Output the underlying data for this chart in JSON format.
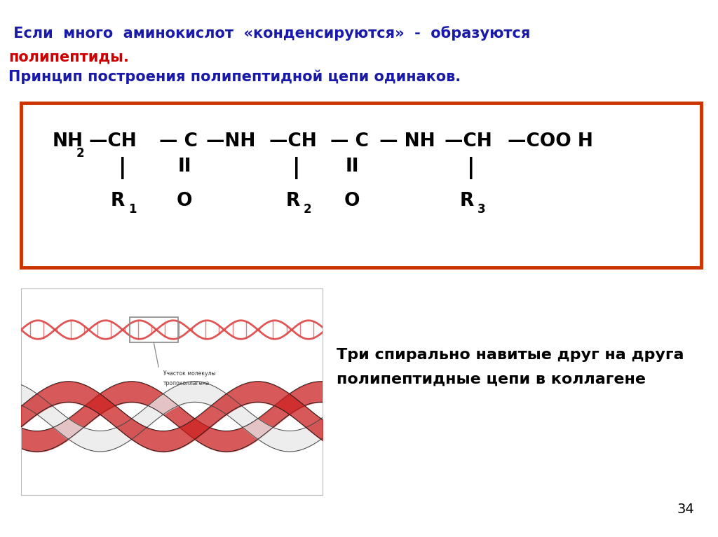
{
  "background_color": "#ffffff",
  "title_line1_part1": " Если  много  аминокислот  «конденсируются»  -  образуются",
  "title_line2_red": "полипептиды.",
  "title_line3_blue": "Принцип построения полипептидной цепи одинаков.",
  "box_border_color": "#cc3300",
  "collagen_text_line1": "Три спирально навитые друг на друга",
  "collagen_text_line2": "полипептидные цепи в коллагене",
  "page_number": "34",
  "font_color_blue": "#1a1aaa",
  "font_color_red": "#cc0000",
  "font_color_black": "#000000",
  "collagen_label1": "Участок молекулы",
  "collagen_label2": "тропоколлагена"
}
